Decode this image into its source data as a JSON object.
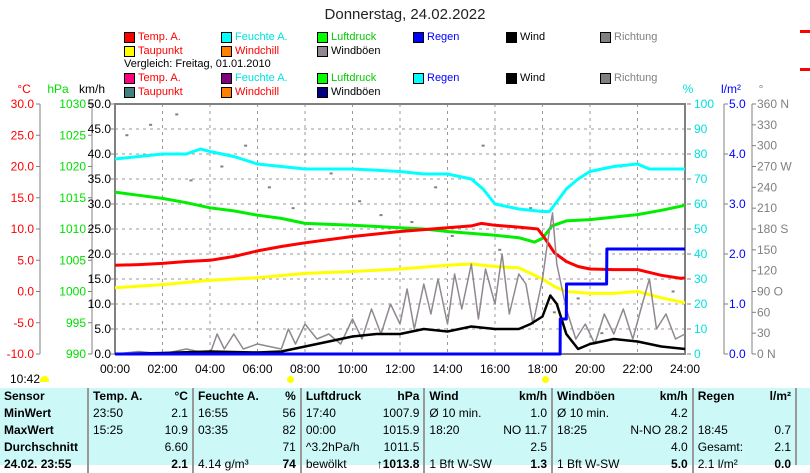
{
  "title": "Donnerstag, 24.02.2022",
  "legend_current": [
    {
      "label": "Temp. A.",
      "swatch": "#ff0000",
      "color": "#ff0000"
    },
    {
      "label": "Feuchte A.",
      "swatch": "#00ffff",
      "color": "#00e0e0"
    },
    {
      "label": "Luftdruck",
      "swatch": "#00ff00",
      "color": "#00cc00"
    },
    {
      "label": "Regen",
      "swatch": "#0000ff",
      "color": "#0000ff"
    },
    {
      "label": "Wind",
      "swatch": "#000000",
      "color": "#000000"
    },
    {
      "label": "Richtung",
      "swatch": "#808080",
      "color": "#808080"
    },
    {
      "label": "Taupunkt",
      "swatch": "#ffff00",
      "color": "#ff0000"
    },
    {
      "label": "Windchill",
      "swatch": "#ff8000",
      "color": "#ff0000"
    },
    {
      "label": "Windböen",
      "swatch": "#908890",
      "color": "#000000"
    }
  ],
  "compare_label": "Vergleich: Freitag, 01.01.2010",
  "legend_compare": [
    {
      "label": "Temp. A.",
      "swatch": "#ff0080",
      "color": "#ff0000"
    },
    {
      "label": "Feuchte A.",
      "swatch": "#800080",
      "color": "#00e0e0"
    },
    {
      "label": "Luftdruck",
      "swatch": "#00ff00",
      "color": "#00cc00"
    },
    {
      "label": "Regen",
      "swatch": "#00ffff",
      "color": "#0000ff"
    },
    {
      "label": "Wind",
      "swatch": "#000000",
      "color": "#000000"
    },
    {
      "label": "Richtung",
      "swatch": "#808080",
      "color": "#808080"
    },
    {
      "label": "Taupunkt",
      "swatch": "#408080",
      "color": "#ff0000"
    },
    {
      "label": "Windchill",
      "swatch": "#ff8000",
      "color": "#ff0000"
    },
    {
      "label": "Windböen",
      "swatch": "#000080",
      "color": "#000000"
    }
  ],
  "sun_time": "10:42",
  "chart_data": {
    "type": "line",
    "title": "Donnerstag, 24.02.2022",
    "xlabel": "",
    "x_ticks": [
      "00:00",
      "02:00",
      "04:00",
      "06:00",
      "08:00",
      "10:00",
      "12:00",
      "14:00",
      "16:00",
      "18:00",
      "20:00",
      "22:00",
      "24:00"
    ],
    "xlim": [
      0,
      24
    ],
    "grid": true,
    "axes": {
      "temp": {
        "unit": "°C",
        "ticks": [
          "30.0",
          "25.0",
          "20.0",
          "15.0",
          "10.0",
          "5.0",
          "0.0",
          "-5.0",
          "-10.0"
        ],
        "range": [
          -10,
          30
        ],
        "color": "#ff0000"
      },
      "pressure": {
        "unit": "hPa",
        "ticks": [
          "1030",
          "1025",
          "1020",
          "1015",
          "1010",
          "1005",
          "1000",
          "995",
          "990"
        ],
        "range": [
          990,
          1030
        ],
        "color": "#00e000"
      },
      "wind": {
        "unit": "km/h",
        "ticks": [
          "50.0",
          "45.0",
          "40.0",
          "35.0",
          "30.0",
          "25.0",
          "20.0",
          "15.0",
          "10.0",
          "5.0",
          "0.0"
        ],
        "range": [
          0,
          50
        ],
        "color": "#000000"
      },
      "humidity": {
        "unit": "%",
        "ticks": [
          "100",
          "90",
          "80",
          "70",
          "60",
          "50",
          "40",
          "30",
          "20",
          "10",
          "0"
        ],
        "range": [
          0,
          100
        ],
        "color": "#00e0e0"
      },
      "rain": {
        "unit": "l/m²",
        "ticks": [
          "5.0",
          "4.0",
          "3.0",
          "2.0",
          "1.0",
          "0.0"
        ],
        "range": [
          0,
          5
        ],
        "color": "#0000ff"
      },
      "direction": {
        "unit": "°",
        "ticks": [
          "360 N",
          "330",
          "300",
          "270 W",
          "240",
          "210",
          "180 S",
          "150",
          "120",
          "90  O",
          "60",
          "30",
          "0   N"
        ],
        "range": [
          0,
          360
        ],
        "color": "#808080"
      }
    },
    "series": [
      {
        "name": "Feuchte A.",
        "axis": "humidity",
        "color": "#00ffff",
        "x": [
          0,
          1,
          2,
          3,
          3.6,
          4,
          5,
          6,
          7,
          8,
          10,
          12,
          13,
          14,
          14.5,
          15,
          15.5,
          16,
          17,
          18,
          18.3,
          19,
          19.5,
          20,
          21,
          22,
          22.5,
          23,
          24
        ],
        "values": [
          78,
          79,
          80,
          80,
          82,
          81,
          79,
          76,
          75,
          74,
          74,
          73,
          72,
          72,
          71,
          70,
          66,
          60,
          58,
          57,
          57,
          66,
          70,
          73,
          75,
          76,
          74,
          74,
          74
        ]
      },
      {
        "name": "Luftdruck",
        "axis": "pressure",
        "color": "#00ee00",
        "x": [
          0,
          1,
          2,
          3,
          4,
          5,
          6,
          7,
          8,
          10,
          12,
          13,
          14,
          15,
          16,
          17,
          17.66,
          18,
          18.4,
          19,
          20,
          21,
          22,
          23,
          24
        ],
        "values": [
          1015.9,
          1015.4,
          1014.9,
          1014.2,
          1013.4,
          1012.9,
          1012.2,
          1011.7,
          1010.9,
          1010.6,
          1010.2,
          1010.0,
          1009.6,
          1009.3,
          1009.0,
          1008.6,
          1007.9,
          1008.5,
          1010.5,
          1011.3,
          1011.5,
          1011.9,
          1012.3,
          1013.0,
          1013.8
        ]
      },
      {
        "name": "Temp. A.",
        "axis": "temp",
        "color": "#ff0000",
        "x": [
          0,
          1,
          2,
          3,
          4,
          5,
          6,
          7,
          8,
          9,
          10,
          11,
          12,
          13,
          14,
          15,
          15.42,
          16,
          17,
          17.8,
          18.1,
          18.5,
          19,
          19.5,
          20,
          21,
          22,
          23,
          23.83,
          24
        ],
        "values": [
          4.2,
          4.3,
          4.5,
          4.8,
          5.0,
          5.6,
          6.5,
          7.2,
          7.8,
          8.3,
          8.8,
          9.2,
          9.6,
          9.9,
          10.2,
          10.5,
          10.9,
          10.6,
          10.3,
          10.0,
          8.5,
          6.2,
          4.8,
          4.0,
          3.6,
          3.5,
          3.5,
          2.6,
          2.1,
          2.2
        ]
      },
      {
        "name": "Taupunkt",
        "axis": "temp",
        "color": "#ffff00",
        "x": [
          0,
          2,
          4,
          6,
          8,
          10,
          12,
          13,
          14,
          15,
          16,
          17,
          18,
          18.5,
          19,
          20,
          21,
          22,
          23,
          24
        ],
        "values": [
          0.6,
          1.1,
          1.8,
          2.2,
          2.9,
          3.2,
          3.6,
          3.9,
          4.2,
          4.4,
          4.0,
          3.8,
          2.0,
          0.8,
          0.0,
          -0.3,
          -0.3,
          0.0,
          -1.0,
          -1.8
        ]
      },
      {
        "name": "Windböen",
        "axis": "wind",
        "color": "#908890",
        "x": [
          0,
          1,
          2,
          3,
          4,
          4.3,
          4.6,
          5,
          5.4,
          6,
          7,
          7.3,
          7.6,
          8,
          8.5,
          9,
          9.5,
          10,
          10.4,
          10.8,
          11.2,
          11.6,
          12,
          12.3,
          12.6,
          13,
          13.3,
          13.6,
          14,
          14.3,
          14.6,
          15,
          15.3,
          15.6,
          16,
          16.3,
          16.6,
          17,
          17.3,
          17.6,
          18,
          18.2,
          18.42,
          18.6,
          19,
          19.4,
          19.8,
          20.2,
          20.6,
          21,
          21.4,
          21.8,
          22.2,
          22.5,
          22.8,
          23.2,
          23.6,
          24
        ],
        "values": [
          0,
          0.5,
          0,
          1,
          0,
          4,
          1,
          4,
          1,
          2,
          1,
          5,
          2,
          6,
          3,
          4,
          2,
          7,
          3,
          9,
          4,
          10,
          6,
          13,
          5,
          14,
          8,
          15,
          6,
          16,
          9,
          18,
          7,
          17,
          10,
          20,
          8,
          16,
          14,
          6,
          15,
          22,
          28.2,
          18,
          9,
          3,
          6,
          2,
          8,
          4,
          9,
          3,
          10,
          15,
          5,
          8,
          3,
          4
        ]
      },
      {
        "name": "Wind",
        "axis": "wind",
        "color": "#000000",
        "x": [
          0,
          2,
          4,
          6,
          7,
          8,
          9,
          10,
          11,
          12,
          13,
          14,
          15,
          16,
          17,
          17.5,
          18,
          18.33,
          18.6,
          19,
          19.5,
          20,
          21,
          22,
          23,
          24
        ],
        "values": [
          0,
          0.2,
          0.5,
          0.3,
          0.5,
          1.5,
          2.5,
          3.5,
          4,
          4,
          5,
          4.5,
          5.5,
          5,
          5,
          6,
          7.5,
          11.7,
          10,
          4,
          1,
          2,
          3,
          2.5,
          1.5,
          1.0
        ]
      },
      {
        "name": "Regen",
        "axis": "rain",
        "color": "#0000ff",
        "x": [
          0,
          18.74,
          18.75,
          19.0,
          19.01,
          20.7,
          20.71,
          24
        ],
        "values": [
          0,
          0,
          0.7,
          0.7,
          1.4,
          1.4,
          2.1,
          2.1
        ],
        "step": true
      }
    ],
    "direction_points": {
      "axis": "direction",
      "color": "#808080",
      "x": [
        0.5,
        1.5,
        2.6,
        3.2,
        4.5,
        5.5,
        6.5,
        7.5,
        8.2,
        9.1,
        10.3,
        11.2,
        12.5,
        13.5,
        14.2,
        15.5,
        16.2,
        17.5,
        18.5,
        19.5,
        20.5,
        21.3,
        22.5,
        23.5
      ],
      "values": [
        315,
        330,
        345,
        250,
        270,
        300,
        240,
        210,
        180,
        260,
        220,
        200,
        190,
        240,
        170,
        300,
        150,
        210,
        60,
        80,
        30,
        270,
        150,
        90
      ]
    }
  },
  "table": {
    "headers": [
      {
        "label": "Sensor",
        "unit": ""
      },
      {
        "label": "Temp. A.",
        "unit": "°C"
      },
      {
        "label": "Feuchte A.",
        "unit": "%"
      },
      {
        "label": "Luftdruck",
        "unit": "hPa"
      },
      {
        "label": "Wind",
        "unit": "km/h"
      },
      {
        "label": "Windböen",
        "unit": "km/h"
      },
      {
        "label": "Regen",
        "unit": "l/m²"
      }
    ],
    "rows": [
      {
        "label": "MinWert",
        "cells": [
          [
            "23:50",
            "2.1"
          ],
          [
            "16:55",
            "56"
          ],
          [
            "17:40",
            "1007.9"
          ],
          [
            "Ø 10 min.",
            "1.0"
          ],
          [
            "Ø 10 min.",
            "4.2"
          ],
          [
            "",
            ""
          ]
        ]
      },
      {
        "label": "MaxWert",
        "cells": [
          [
            "15:25",
            "10.9"
          ],
          [
            "03:35",
            "82"
          ],
          [
            "00:00",
            "1015.9"
          ],
          [
            "18:20",
            "NO 11.7"
          ],
          [
            "18:25",
            "N-NO 28.2"
          ],
          [
            "18:45",
            "0.7"
          ]
        ]
      },
      {
        "label": "Durchschnitt",
        "cells": [
          [
            "",
            "6.60"
          ],
          [
            "",
            "71"
          ],
          [
            "^3.2hPa/h",
            "1011.5"
          ],
          [
            "",
            "2.5"
          ],
          [
            "",
            "4.0"
          ],
          [
            "Gesamt:",
            "2.1"
          ]
        ]
      },
      {
        "label": "24.02. 23:55",
        "cells": [
          [
            "",
            "2.1"
          ],
          [
            "4.14 g/m³",
            "74"
          ],
          [
            "bewölkt",
            "↑1013.8"
          ],
          [
            "1 Bft W-SW",
            "1.3"
          ],
          [
            "1 Bft W-SW",
            "5.0"
          ],
          [
            "2.1 l/m²",
            "0.0"
          ]
        ]
      }
    ]
  }
}
